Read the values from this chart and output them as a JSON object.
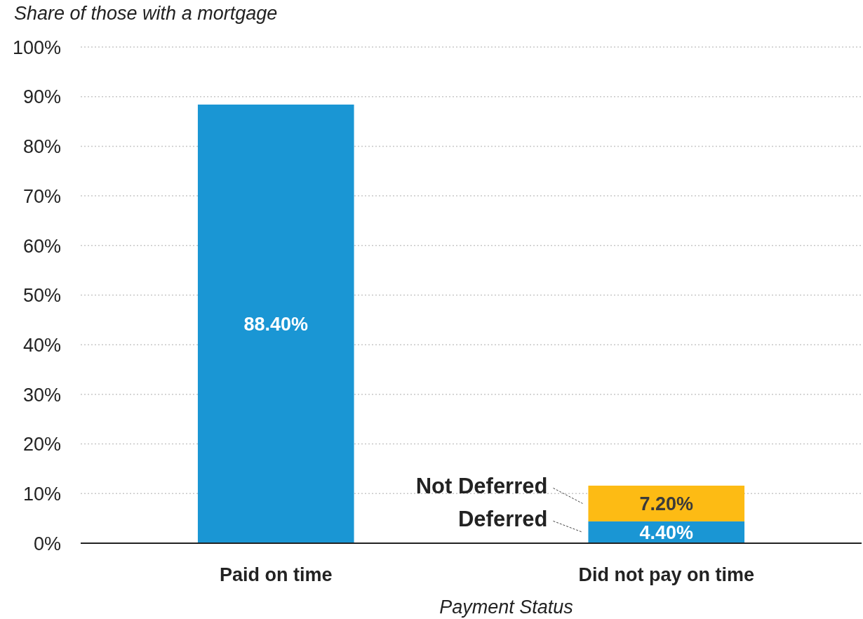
{
  "chart_data": {
    "type": "bar",
    "stacked": true,
    "ylabel": "Share of those with a mortgage",
    "xlabel": "Payment Status",
    "categories": [
      "Paid on time",
      "Did not pay on time"
    ],
    "series": [
      {
        "name": "Deferred",
        "color": "#1a96d4",
        "values": [
          88.4,
          4.4
        ],
        "value_labels": [
          "88.40%",
          "4.40%"
        ]
      },
      {
        "name": "Not Deferred",
        "color": "#fdbb14",
        "values": [
          null,
          7.2
        ],
        "value_labels": [
          null,
          "7.20%"
        ]
      }
    ],
    "ylim": [
      0,
      100
    ],
    "yticks": [
      {
        "value": 0,
        "label": "0%"
      },
      {
        "value": 10,
        "label": "10%"
      },
      {
        "value": 20,
        "label": "20%"
      },
      {
        "value": 30,
        "label": "30%"
      },
      {
        "value": 40,
        "label": "40%"
      },
      {
        "value": 50,
        "label": "50%"
      },
      {
        "value": 60,
        "label": "60%"
      },
      {
        "value": 70,
        "label": "70%"
      },
      {
        "value": 80,
        "label": "80%"
      },
      {
        "value": 90,
        "label": "90%"
      },
      {
        "value": 100,
        "label": "100%"
      }
    ],
    "grid": "y"
  }
}
